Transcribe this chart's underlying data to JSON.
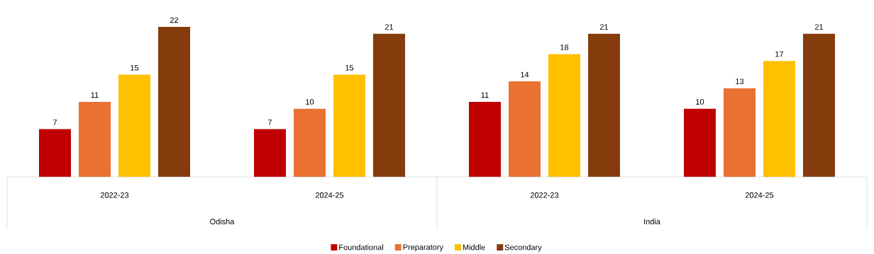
{
  "chart_data": {
    "type": "bar",
    "categories": [
      "2022-23",
      "2024-25",
      "2022-23",
      "2024-25"
    ],
    "series": [
      {
        "name": "Foundational",
        "color": "#c00000",
        "values": [
          7,
          7,
          11,
          10
        ]
      },
      {
        "name": "Preparatory",
        "color": "#e97132",
        "values": [
          11,
          10,
          14,
          13
        ]
      },
      {
        "name": "Middle",
        "color": "#ffc000",
        "values": [
          15,
          15,
          18,
          17
        ]
      },
      {
        "name": "Secondary",
        "color": "#843c0c",
        "values": [
          22,
          21,
          21,
          21
        ]
      }
    ],
    "annotations": [
      "Odisha",
      "India"
    ],
    "data_labels": true,
    "legend": "bottom"
  }
}
